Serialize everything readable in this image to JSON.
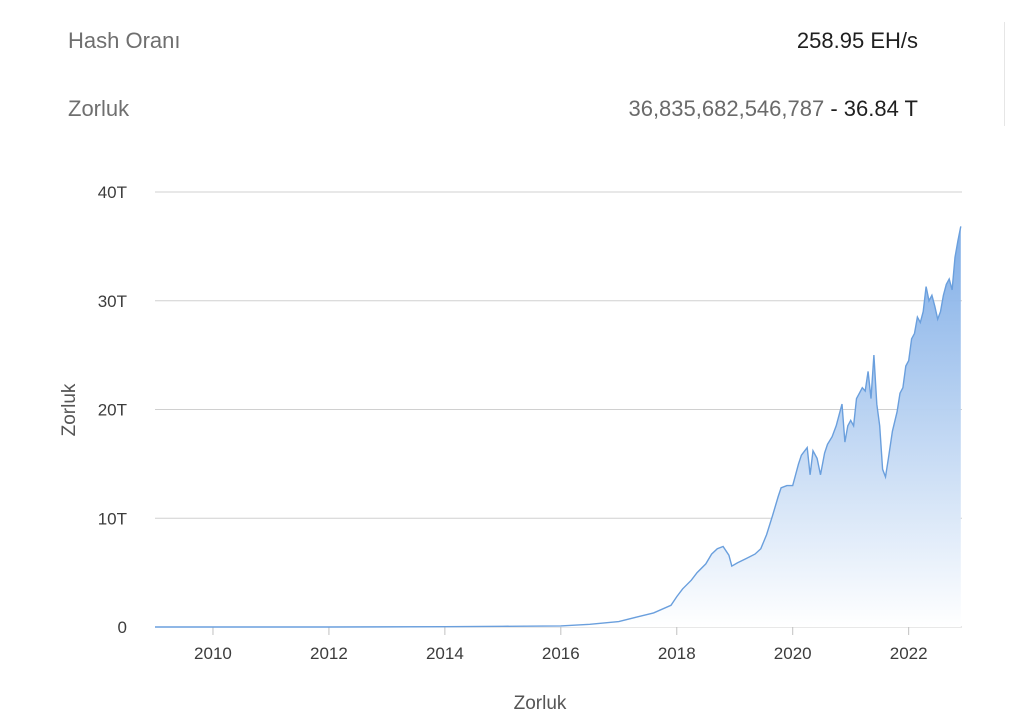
{
  "stats": {
    "hashrate_label": "Hash Oranı",
    "hashrate_value": "258.95 EH/s",
    "difficulty_label": "Zorluk",
    "difficulty_raw": "36,835,682,546,787",
    "difficulty_separator": " - ",
    "difficulty_short": "36.84 T"
  },
  "colors": {
    "line": "#6a9fdd",
    "fill_top": "#7aaae6",
    "fill_bottom": "#ffffff",
    "grid": "#d0d0d0"
  },
  "chart_data": {
    "type": "area",
    "xlabel": "Zorluk",
    "ylabel": "Zorluk",
    "ylim": [
      0,
      40
    ],
    "xlim": [
      2009.0,
      2022.92
    ],
    "y_ticks": [
      {
        "value": 0,
        "label": "0"
      },
      {
        "value": 10,
        "label": "10T"
      },
      {
        "value": 20,
        "label": "20T"
      },
      {
        "value": 30,
        "label": "30T"
      },
      {
        "value": 40,
        "label": "40T"
      }
    ],
    "x_ticks": [
      {
        "value": 2010,
        "label": "2010"
      },
      {
        "value": 2012,
        "label": "2012"
      },
      {
        "value": 2014,
        "label": "2014"
      },
      {
        "value": 2016,
        "label": "2016"
      },
      {
        "value": 2018,
        "label": "2018"
      },
      {
        "value": 2020,
        "label": "2020"
      },
      {
        "value": 2022,
        "label": "2022"
      }
    ],
    "grid": true,
    "series": [
      {
        "x": [
          2009.0,
          2012.0,
          2014.0,
          2015.0,
          2016.0,
          2016.5,
          2017.0,
          2017.3,
          2017.6,
          2017.9,
          2018.0,
          2018.1,
          2018.25,
          2018.35,
          2018.5,
          2018.6,
          2018.7,
          2018.8,
          2018.9,
          2018.95,
          2019.05,
          2019.2,
          2019.35,
          2019.45,
          2019.55,
          2019.65,
          2019.75,
          2019.8,
          2019.9,
          2020.0,
          2020.1,
          2020.15,
          2020.25,
          2020.3,
          2020.35,
          2020.42,
          2020.48,
          2020.55,
          2020.6,
          2020.68,
          2020.75,
          2020.8,
          2020.85,
          2020.9,
          2020.95,
          2021.0,
          2021.05,
          2021.1,
          2021.15,
          2021.2,
          2021.25,
          2021.3,
          2021.35,
          2021.4,
          2021.45,
          2021.5,
          2021.55,
          2021.6,
          2021.65,
          2021.72,
          2021.8,
          2021.85,
          2021.9,
          2021.95,
          2022.0,
          2022.05,
          2022.1,
          2022.15,
          2022.2,
          2022.25,
          2022.3,
          2022.35,
          2022.4,
          2022.45,
          2022.5,
          2022.55,
          2022.6,
          2022.65,
          2022.7,
          2022.75,
          2022.8,
          2022.85,
          2022.9
        ],
        "values": [
          0,
          0.002,
          0.03,
          0.06,
          0.1,
          0.25,
          0.5,
          0.9,
          1.3,
          2.0,
          2.8,
          3.5,
          4.3,
          5.0,
          5.8,
          6.7,
          7.2,
          7.4,
          6.6,
          5.6,
          5.9,
          6.3,
          6.7,
          7.2,
          8.5,
          10.2,
          12.0,
          12.8,
          13.0,
          13.0,
          15.0,
          15.8,
          16.5,
          14.0,
          16.2,
          15.5,
          14.0,
          16.0,
          16.8,
          17.5,
          18.5,
          19.5,
          20.5,
          17.0,
          18.5,
          19.0,
          18.5,
          21.0,
          21.5,
          22.0,
          21.7,
          23.5,
          21.0,
          25.0,
          20.5,
          18.5,
          14.5,
          13.8,
          15.5,
          18.0,
          19.8,
          21.5,
          22.0,
          24.0,
          24.5,
          26.5,
          27.0,
          28.5,
          28.0,
          29.0,
          31.3,
          30.0,
          30.5,
          29.5,
          28.3,
          29.0,
          30.5,
          31.5,
          32.0,
          31.0,
          34.0,
          35.5,
          36.84
        ]
      }
    ]
  }
}
